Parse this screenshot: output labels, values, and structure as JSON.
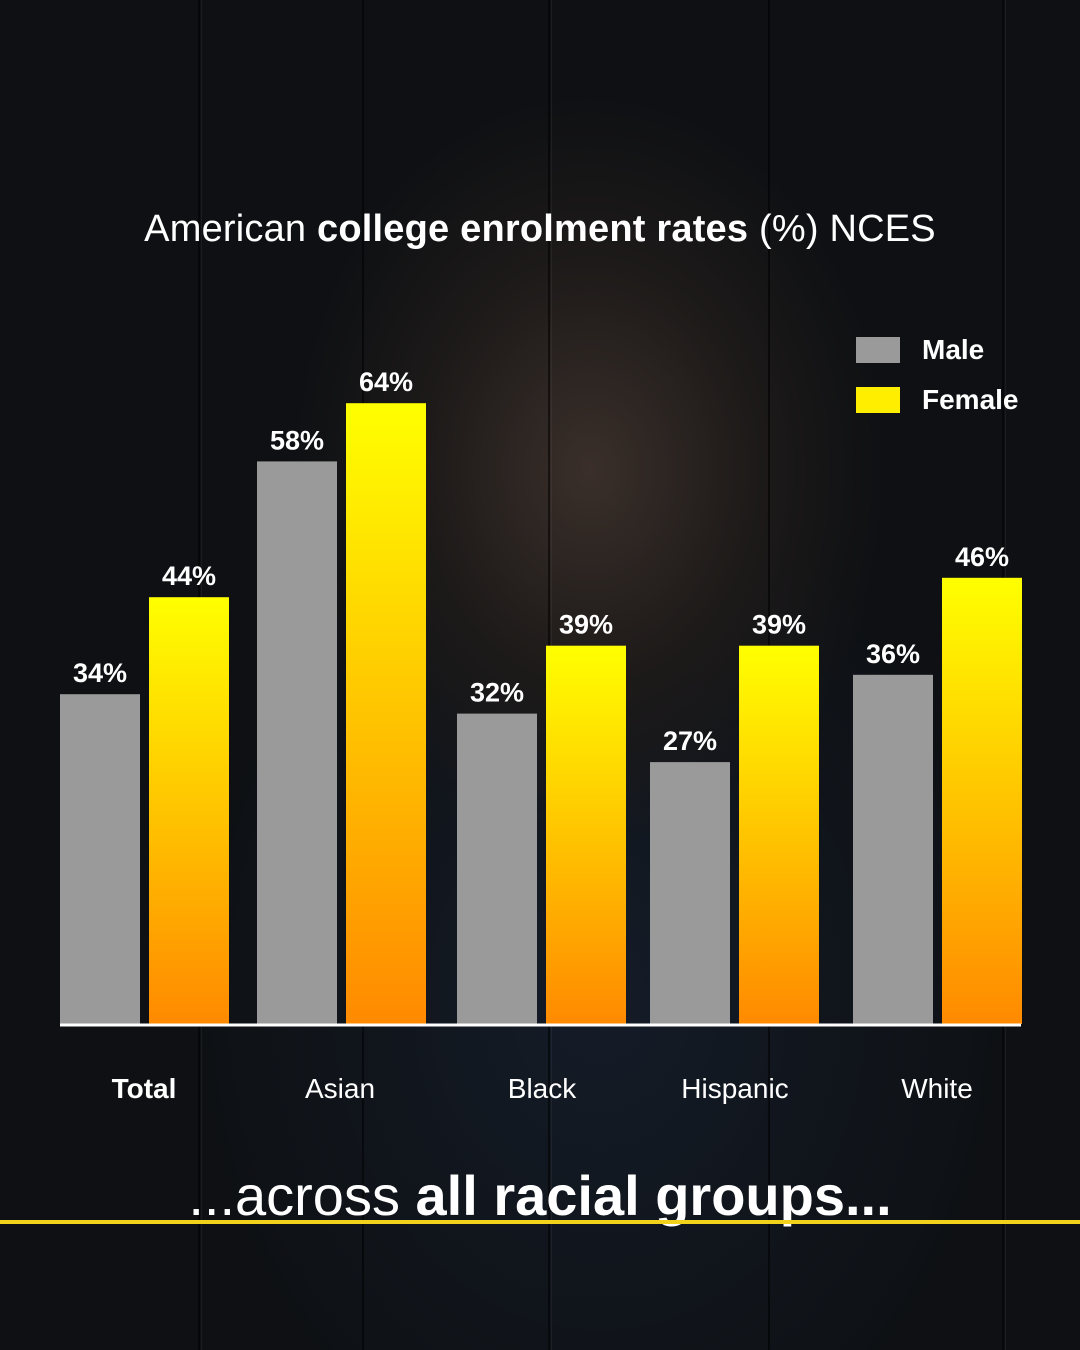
{
  "title": {
    "part1": "American ",
    "bold": "college enrolment rates",
    "part2": " (%) NCES"
  },
  "legend": [
    {
      "label": "Male",
      "color": "#9a9a9a"
    },
    {
      "label": "Female",
      "color": "#ffee00"
    }
  ],
  "colors": {
    "male": "#9a9a9a",
    "female_top": "#ffff00",
    "female_bottom": "#ff8a00",
    "baseline": "#ffffff",
    "caption_rule": "#f2d21b"
  },
  "chart_data": {
    "type": "bar",
    "categories": [
      "Total",
      "Asian",
      "Black",
      "Hispanic",
      "White"
    ],
    "series": [
      {
        "name": "Male",
        "values": [
          34,
          58,
          32,
          27,
          36
        ]
      },
      {
        "name": "Female",
        "values": [
          44,
          64,
          39,
          39,
          46
        ]
      }
    ],
    "value_labels": {
      "Male": [
        "34%",
        "58%",
        "32%",
        "27%",
        "36%"
      ],
      "Female": [
        "44%",
        "64%",
        "39%",
        "39%",
        "46%"
      ]
    },
    "title": "American college enrolment rates (%) NCES",
    "xlabel": "",
    "ylabel": "",
    "ylim": [
      0,
      64
    ],
    "grid": false,
    "legend_position": "top-right"
  },
  "caption": {
    "part1": "...across ",
    "bold": "all racial groups..."
  }
}
